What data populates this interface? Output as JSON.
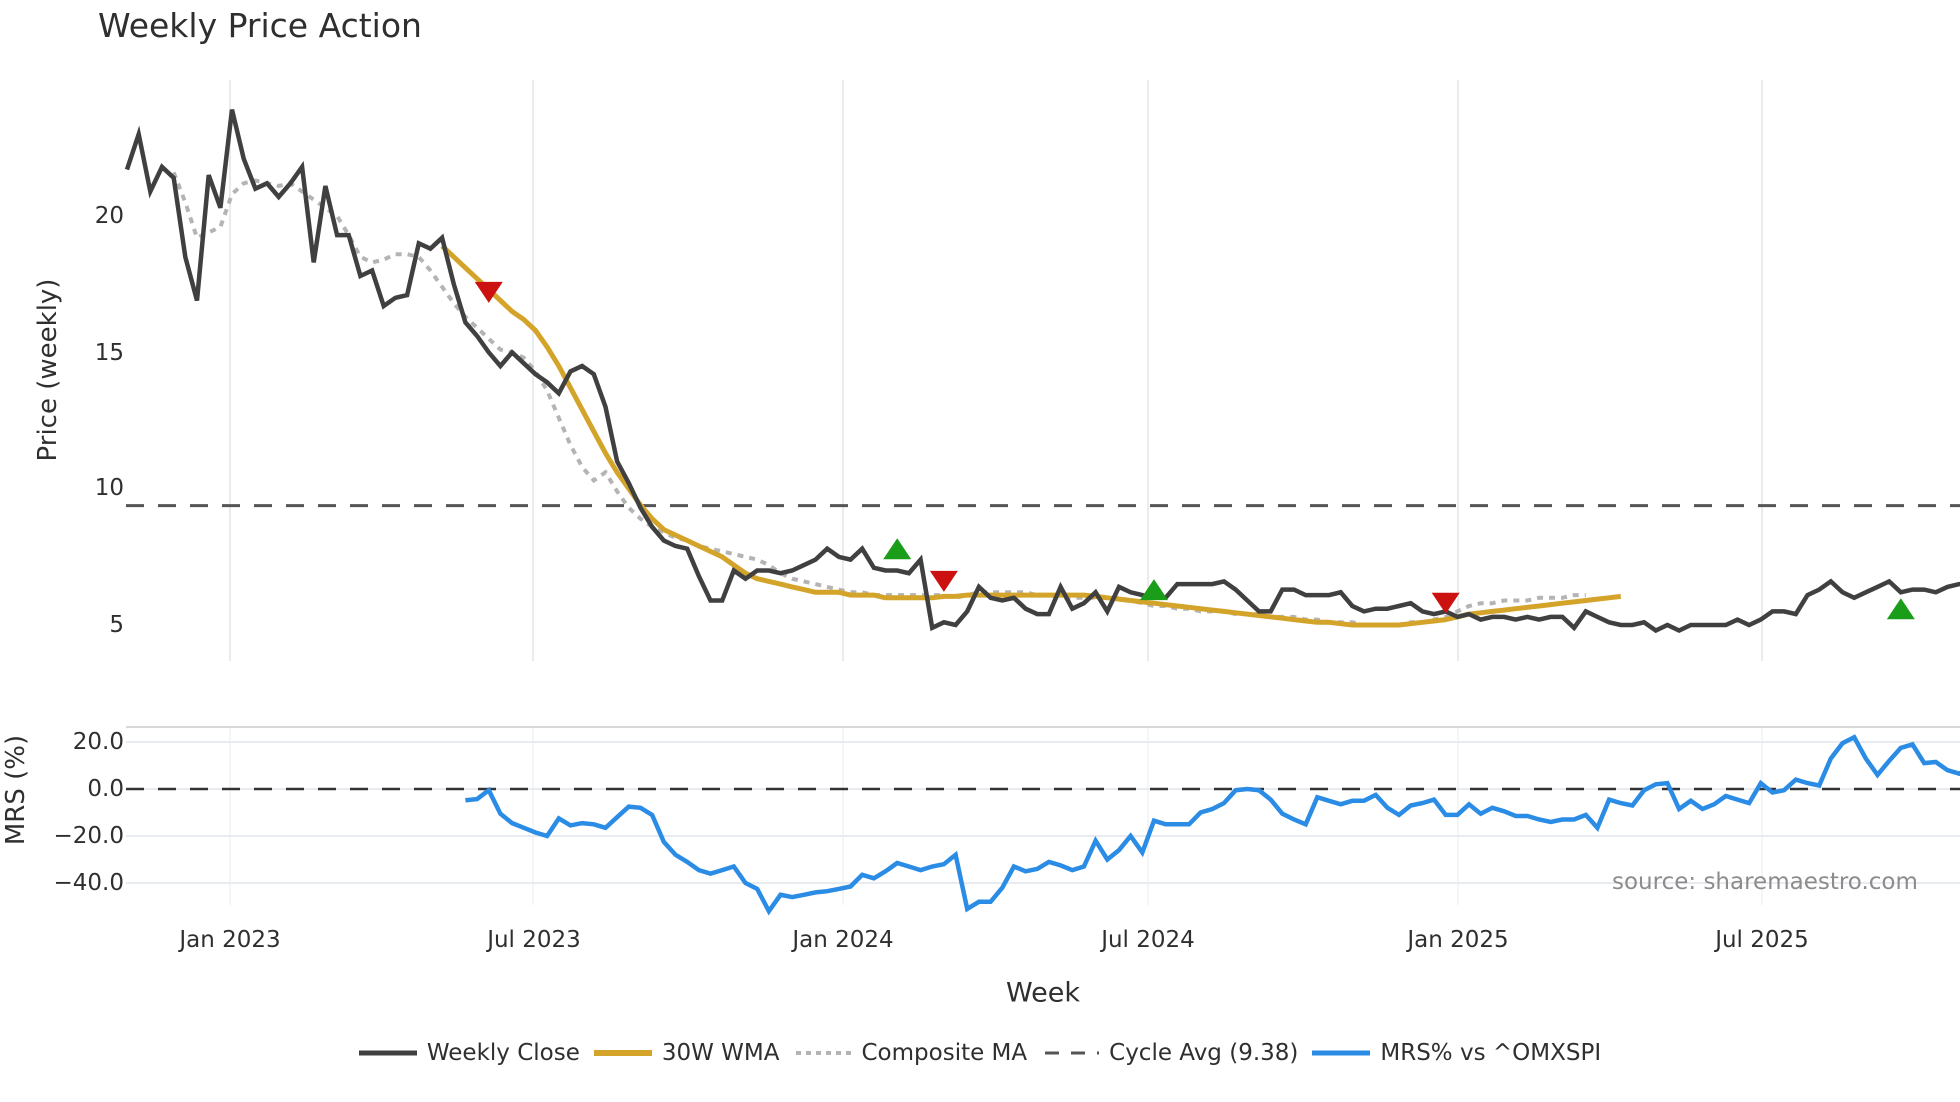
{
  "title": "Weekly Price Action",
  "axes": {
    "price_ylabel": "Price (weekly)",
    "mrs_ylabel": "MRS (%)",
    "xlabel": "Week",
    "price_yticks": [
      "20",
      "15",
      "10",
      "5"
    ],
    "mrs_yticks": [
      "20.0",
      "0.0",
      "−20.0",
      "−40.0"
    ],
    "xticks": [
      "Jan 2023",
      "Jul 2023",
      "Jan 2024",
      "Jul 2024",
      "Jan 2025",
      "Jul 2025"
    ]
  },
  "source": "source: sharemaestro.com",
  "legend": [
    {
      "label": "Weekly Close",
      "color": "#404040",
      "style": "solid"
    },
    {
      "label": "30W WMA",
      "color": "#d4a42a",
      "style": "solid"
    },
    {
      "label": "Composite MA",
      "color": "#b4b4b4",
      "style": "dotted"
    },
    {
      "label": "Cycle Avg (9.38)",
      "color": "#555555",
      "style": "dashed"
    },
    {
      "label": "MRS% vs ^OMXSPI",
      "color": "#2b8ce6",
      "style": "solid"
    }
  ],
  "colors": {
    "close": "#404040",
    "wma": "#d4a42a",
    "composite": "#b4b4b4",
    "cycle": "#555555",
    "mrs": "#2b8ce6",
    "sell_marker": "#cc1111",
    "buy_marker": "#1a9e1a",
    "grid": "#e8ecf0"
  },
  "chart_data": [
    {
      "type": "line",
      "title": "Weekly Price Action",
      "xlabel": "Week",
      "ylabel": "Price (weekly)",
      "ylim": [
        3.7,
        24.5
      ],
      "x_range": [
        "2022-10-24",
        "2025-10-20"
      ],
      "x_tick_labels": [
        "Jan 2023",
        "Jul 2023",
        "Jan 2024",
        "Jul 2024",
        "Jan 2025",
        "Jul 2025"
      ],
      "y_tick_labels": [
        5,
        10,
        15,
        20
      ],
      "grid": true,
      "legend_position": "bottom",
      "series": [
        {
          "name": "Weekly Close",
          "start_week_index": 0,
          "values": [
            21.7,
            23.0,
            20.9,
            21.8,
            21.4,
            18.5,
            16.9,
            21.5,
            20.3,
            23.9,
            22.1,
            21.0,
            21.2,
            20.7,
            21.2,
            21.8,
            18.3,
            21.1,
            19.3,
            19.3,
            17.8,
            18.0,
            16.7,
            17.0,
            17.1,
            19.0,
            18.8,
            19.2,
            17.5,
            16.1,
            15.6,
            15.0,
            14.5,
            15.0,
            14.6,
            14.2,
            13.9,
            13.5,
            14.3,
            14.5,
            14.2,
            13.0,
            11.0,
            10.2,
            9.3,
            8.6,
            8.1,
            7.9,
            7.8,
            6.8,
            5.9,
            5.9,
            7.0,
            6.7,
            7.0,
            7.0,
            6.9,
            7.0,
            7.2,
            7.4,
            7.8,
            7.5,
            7.4,
            7.8,
            7.1,
            7.0,
            7.0,
            6.9,
            7.4,
            4.9,
            5.1,
            5.0,
            5.5,
            6.4,
            6.0,
            5.9,
            6.0,
            5.6,
            5.4,
            5.4,
            6.4,
            5.6,
            5.8,
            6.2,
            5.5,
            6.4,
            6.2,
            6.1,
            6.0,
            6.0,
            6.5,
            6.5,
            6.5,
            6.5,
            6.6,
            6.3,
            5.9,
            5.5,
            5.5,
            6.3,
            6.3,
            6.1,
            6.1,
            6.1,
            6.2,
            5.7,
            5.5,
            5.6,
            5.6,
            5.7,
            5.8,
            5.5,
            5.4,
            5.5,
            5.3,
            5.4,
            5.2,
            5.3,
            5.3,
            5.2,
            5.3,
            5.2,
            5.3,
            5.3,
            4.9,
            5.5,
            5.3,
            5.1,
            5.0,
            5.0,
            5.1,
            4.8,
            5.0,
            4.8,
            5.0,
            5.0,
            5.0,
            5.0,
            5.2,
            5.0,
            5.2,
            5.5,
            5.5,
            5.4,
            6.1,
            6.3,
            6.6,
            6.2,
            6.0,
            6.2,
            6.4,
            6.6,
            6.2,
            6.3,
            6.3,
            6.2,
            6.4,
            6.5,
            6.5
          ]
        },
        {
          "name": "30W WMA",
          "start_week_index": 27,
          "values": [
            18.9,
            18.5,
            18.1,
            17.7,
            17.3,
            16.9,
            16.5,
            16.2,
            15.8,
            15.2,
            14.5,
            13.7,
            12.9,
            12.1,
            11.3,
            10.6,
            10.0,
            9.4,
            8.9,
            8.5,
            8.3,
            8.1,
            7.9,
            7.7,
            7.5,
            7.2,
            6.9,
            6.7,
            6.6,
            6.5,
            6.4,
            6.3,
            6.2,
            6.2,
            6.2,
            6.1,
            6.1,
            6.1,
            6.0,
            6.0,
            6.0,
            6.0,
            6.0,
            6.05,
            6.05,
            6.1,
            6.1,
            6.1,
            6.1,
            6.1,
            6.1,
            6.1,
            6.1,
            6.1,
            6.1,
            6.1,
            6.05,
            6.0,
            5.95,
            5.9,
            5.85,
            5.8,
            5.75,
            5.7,
            5.65,
            5.6,
            5.55,
            5.5,
            5.45,
            5.4,
            5.35,
            5.3,
            5.25,
            5.2,
            5.15,
            5.1,
            5.1,
            5.05,
            5.0,
            5.0,
            5.0,
            5.0,
            5.0,
            5.05,
            5.1,
            5.15,
            5.2,
            5.3,
            5.4,
            5.45,
            5.5,
            5.55,
            5.6,
            5.65,
            5.7,
            5.75,
            5.8,
            5.85,
            5.9,
            5.95,
            6.0,
            6.05
          ]
        },
        {
          "name": "Composite MA",
          "start_week_index": 4,
          "values": [
            21.6,
            20.5,
            19.2,
            19.4,
            19.6,
            20.8,
            21.2,
            21.3,
            21.2,
            21.1,
            21.2,
            20.9,
            20.6,
            20.3,
            20.0,
            19.3,
            18.5,
            18.3,
            18.4,
            18.6,
            18.6,
            18.5,
            18.0,
            17.4,
            16.8,
            16.3,
            15.9,
            15.5,
            15.1,
            15.0,
            14.8,
            14.3,
            13.6,
            12.6,
            11.6,
            10.8,
            10.3,
            10.6,
            9.9,
            9.3,
            8.9,
            8.6,
            8.4,
            8.2,
            8.1,
            7.9,
            7.8,
            7.7,
            7.6,
            7.5,
            7.4,
            7.2,
            6.9,
            6.7,
            6.6,
            6.5,
            6.4,
            6.3,
            6.2,
            6.2,
            6.1,
            6.1,
            6.1,
            6.1,
            6.1,
            6.1,
            6.1,
            6.0,
            6.1,
            6.2,
            6.2,
            6.2,
            6.2,
            6.2,
            6.1,
            6.1,
            6.0,
            6.0,
            6.0,
            6.0,
            6.0,
            6.0,
            5.9,
            5.8,
            5.7,
            5.7,
            5.6,
            5.6,
            5.5,
            5.5,
            5.5,
            5.4,
            5.4,
            5.4,
            5.3,
            5.3,
            5.3,
            5.2,
            5.2,
            5.1,
            5.1,
            5.1,
            5.0,
            5.0,
            5.0,
            5.0,
            5.1,
            5.1,
            5.2,
            5.3,
            5.5,
            5.7,
            5.8,
            5.8,
            5.9,
            5.9,
            5.9,
            6.0,
            6.0,
            6.0,
            6.1,
            6.1
          ]
        },
        {
          "name": "Cycle Avg (9.38)",
          "constant": 9.38
        }
      ],
      "markers": [
        {
          "type": "sell",
          "week_index": 31,
          "value": 17.2
        },
        {
          "type": "buy",
          "week_index": 66,
          "value": 7.8
        },
        {
          "type": "sell",
          "week_index": 70,
          "value": 6.6
        },
        {
          "type": "buy",
          "week_index": 88,
          "value": 6.3
        },
        {
          "type": "sell",
          "week_index": 113,
          "value": 5.8
        },
        {
          "type": "buy",
          "week_index": 152,
          "value": 5.6
        }
      ]
    },
    {
      "type": "line",
      "title": "MRS",
      "ylabel": "MRS (%)",
      "ylim": [
        -52,
        27
      ],
      "y_tick_labels": [
        20.0,
        0.0,
        -20.0,
        -40.0
      ],
      "grid": true,
      "reference_line": 0,
      "series": [
        {
          "name": "MRS% vs ^OMXSPI",
          "start_week_index": 29,
          "values": [
            -4.8,
            -4.3,
            -0.5,
            -10.5,
            -14.5,
            -16.5,
            -18.5,
            -20.0,
            -12.5,
            -15.5,
            -14.5,
            -15.0,
            -16.5,
            -12.0,
            -7.5,
            -8.0,
            -11.0,
            -22.5,
            -28.0,
            -31.0,
            -34.5,
            -36.0,
            -34.5,
            -33.0,
            -40.0,
            -42.5,
            -52.0,
            -45.0,
            -46.0,
            -45.0,
            -44.0,
            -43.5,
            -42.5,
            -41.5,
            -36.5,
            -38.0,
            -35.0,
            -31.5,
            -33.0,
            -34.5,
            -33.0,
            -32.0,
            -28.0,
            -51.0,
            -48.0,
            -48.0,
            -42.0,
            -33.0,
            -35.0,
            -34.0,
            -31.0,
            -32.5,
            -34.5,
            -33.0,
            -22.0,
            -30.0,
            -26.0,
            -20.0,
            -27.0,
            -13.5,
            -15.0,
            -15.0,
            -15.0,
            -10.0,
            -8.5,
            -6.0,
            -0.5,
            0.0,
            -0.5,
            -4.5,
            -10.5,
            -13.0,
            -15.0,
            -3.5,
            -5.0,
            -6.5,
            -5.0,
            -5.0,
            -2.5,
            -8.0,
            -11.0,
            -7.0,
            -6.0,
            -4.5,
            -11.0,
            -11.0,
            -6.5,
            -10.5,
            -8.0,
            -9.5,
            -11.5,
            -11.5,
            -13.0,
            -14.0,
            -13.0,
            -13.0,
            -11.0,
            -16.5,
            -4.5,
            -6.0,
            -7.0,
            -0.5,
            2.0,
            2.5,
            -8.5,
            -5.0,
            -8.5,
            -6.5,
            -3.0,
            -4.5,
            -6.0,
            2.5,
            -1.5,
            -0.5,
            4.0,
            2.5,
            1.5,
            13.0,
            19.5,
            22.0,
            13.0,
            6.0,
            12.0,
            17.5,
            19.0,
            11.0,
            11.5,
            8.0,
            6.5,
            9.5,
            10.0,
            7.5
          ]
        }
      ]
    }
  ]
}
